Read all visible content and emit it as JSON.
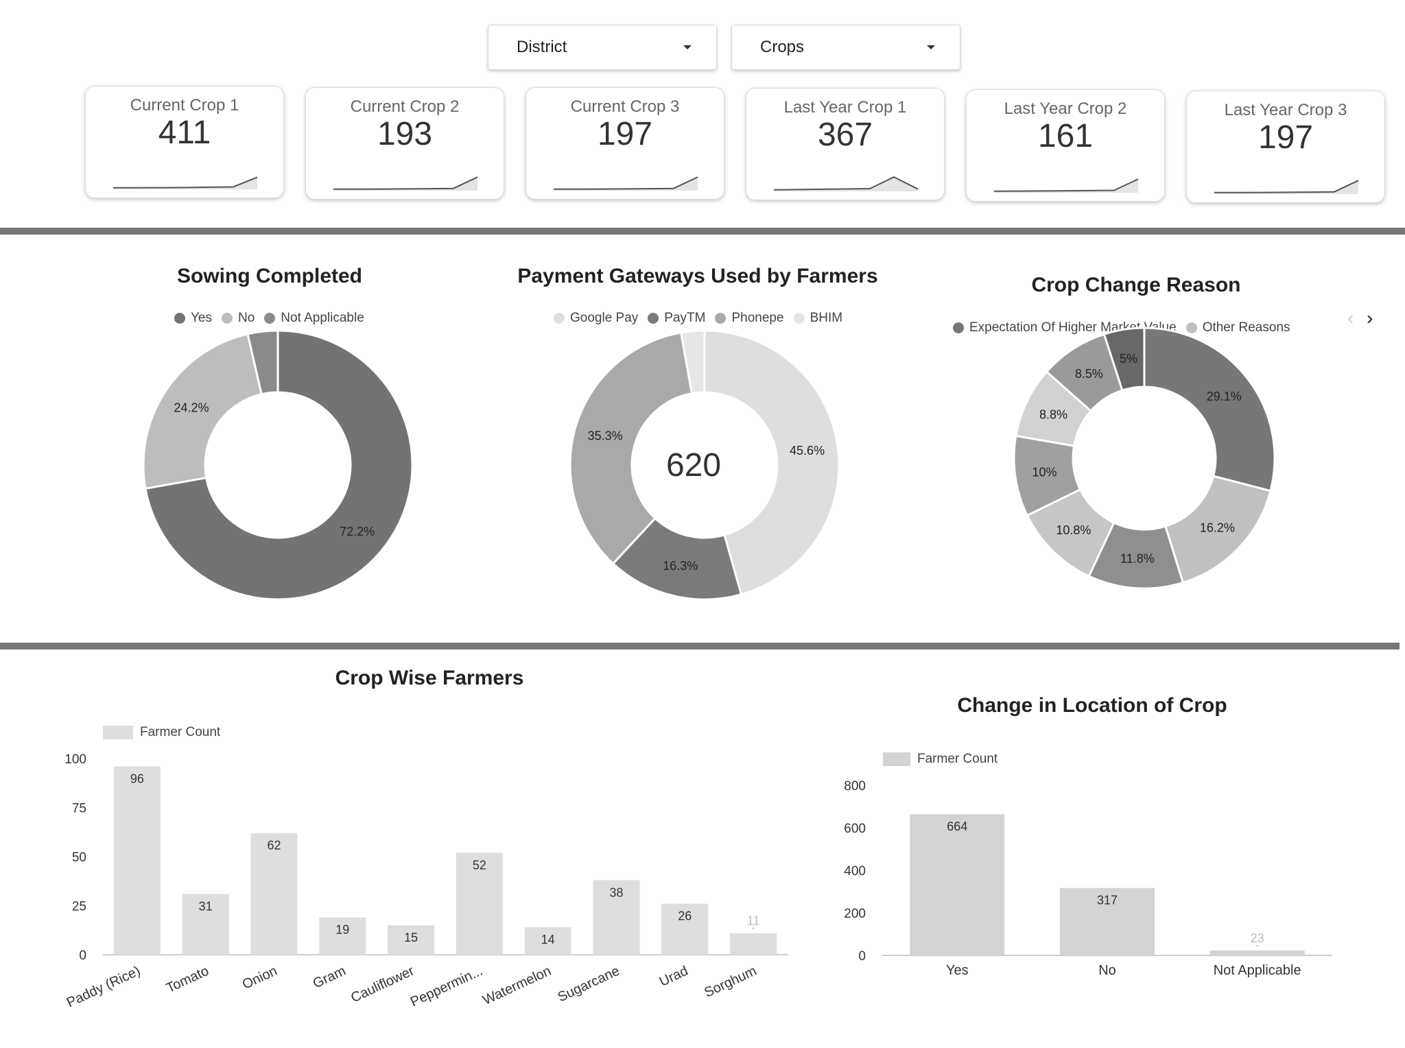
{
  "filters": [
    {
      "label": "District"
    },
    {
      "label": "Crops"
    }
  ],
  "kpis": [
    {
      "label": "Current Crop 1",
      "value": "411",
      "trend": [
        0.1,
        0.1,
        0.11,
        0.12,
        0.14,
        0.16,
        0.8
      ]
    },
    {
      "label": "Current Crop 2",
      "value": "193",
      "trend": [
        0.1,
        0.1,
        0.11,
        0.12,
        0.13,
        0.15,
        0.9
      ]
    },
    {
      "label": "Current Crop 3",
      "value": "197",
      "trend": [
        0.1,
        0.1,
        0.11,
        0.12,
        0.13,
        0.15,
        0.9
      ]
    },
    {
      "label": "Last Year Crop 1",
      "value": "367",
      "trend": [
        0.1,
        0.12,
        0.14,
        0.16,
        0.18,
        0.95,
        0.15
      ]
    },
    {
      "label": "Last Year Crop 2",
      "value": "161",
      "trend": [
        0.1,
        0.11,
        0.12,
        0.13,
        0.14,
        0.16,
        0.9
      ]
    },
    {
      "label": "Last Year Crop 3",
      "value": "197",
      "trend": [
        0.1,
        0.1,
        0.11,
        0.12,
        0.13,
        0.15,
        0.9
      ]
    }
  ],
  "colors": {
    "dark": "#737373",
    "mid": "#a6a6a6",
    "light": "#bdbdbd",
    "pale": "#dcdcdc",
    "bar": "#dedede",
    "bar2": "#d3d3d3"
  },
  "chart_data": [
    {
      "type": "pie",
      "title": "Sowing Completed",
      "donut": true,
      "legend": [
        "Yes",
        "No",
        "Not Applicable"
      ],
      "slices": [
        {
          "label": "Yes",
          "value": 72.2,
          "display": "72.2%",
          "color": "#737373"
        },
        {
          "label": "No",
          "value": 24.2,
          "display": "24.2%",
          "color": "#bdbdbd"
        },
        {
          "label": "Not Applicable",
          "value": 3.6,
          "display": "",
          "color": "#8a8a8a"
        }
      ]
    },
    {
      "type": "pie",
      "title": "Payment Gateways Used by Farmers",
      "donut": true,
      "center_value": "620",
      "legend": [
        "Google Pay",
        "PayTM",
        "Phonepe",
        "BHIM"
      ],
      "slices": [
        {
          "label": "Google Pay",
          "value": 45.6,
          "display": "45.6%",
          "color": "#dedede"
        },
        {
          "label": "PayTM",
          "value": 16.3,
          "display": "16.3%",
          "color": "#7b7b7b"
        },
        {
          "label": "Phonepe",
          "value": 35.3,
          "display": "35.3%",
          "color": "#a9a9a9"
        },
        {
          "label": "BHIM",
          "value": 2.8,
          "display": "",
          "color": "#e6e6e6"
        }
      ]
    },
    {
      "type": "pie",
      "title": "Crop Change Reason",
      "donut": true,
      "legend": [
        "Expectation Of Higher Market Value",
        "Other Reasons"
      ],
      "slices": [
        {
          "label": "Expectation Of Higher Market Value",
          "value": 29.1,
          "display": "29.1%",
          "color": "#777777"
        },
        {
          "label": "Other Reasons",
          "value": 16.2,
          "display": "16.2%",
          "color": "#c0c0c0"
        },
        {
          "label": "",
          "value": 11.8,
          "display": "11.8%",
          "color": "#8f8f8f"
        },
        {
          "label": "",
          "value": 10.8,
          "display": "10.8%",
          "color": "#c6c6c6"
        },
        {
          "label": "",
          "value": 10.0,
          "display": "10%",
          "color": "#a0a0a0"
        },
        {
          "label": "",
          "value": 8.8,
          "display": "8.8%",
          "color": "#d2d2d2"
        },
        {
          "label": "",
          "value": 8.5,
          "display": "8.5%",
          "color": "#9a9a9a"
        },
        {
          "label": "",
          "value": 5.0,
          "display": "5%",
          "color": "#686868"
        }
      ]
    },
    {
      "type": "bar",
      "title": "Crop Wise Farmers",
      "legend": "Farmer Count",
      "categories": [
        "Paddy (Rice)",
        "Tomato",
        "Onion",
        "Gram",
        "Cauliflower",
        "Peppermin...",
        "Watermelon",
        "Sugarcane",
        "Urad",
        "Sorghum"
      ],
      "values": [
        96,
        31,
        62,
        19,
        15,
        52,
        14,
        38,
        26,
        11
      ],
      "ylim": [
        0,
        100
      ],
      "yticks": [
        "0",
        "25",
        "50",
        "75",
        "100"
      ]
    },
    {
      "type": "bar",
      "title": "Change in Location of Crop",
      "legend": "Farmer Count",
      "categories": [
        "Yes",
        "No",
        "Not Applicable"
      ],
      "values": [
        664,
        317,
        23
      ],
      "ylim": [
        0,
        800
      ],
      "yticks": [
        "0",
        "200",
        "400",
        "600",
        "800"
      ]
    }
  ]
}
